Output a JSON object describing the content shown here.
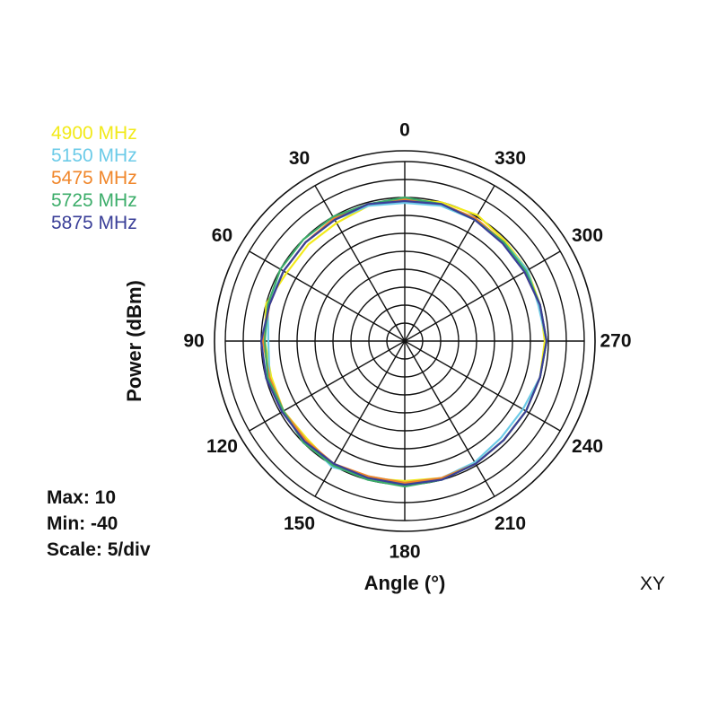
{
  "chart_data": {
    "type": "polar",
    "xlabel": "Angle  (°)",
    "ylabel": "Power  (dBm)",
    "plane_label": "XY",
    "stats": {
      "max_label": "Max: 10",
      "min_label": "Min: -40",
      "scale_label": "Scale: 5/div"
    },
    "rlim": [
      -40,
      10
    ],
    "r_step": 5,
    "angle_ticks": [
      0,
      30,
      60,
      90,
      120,
      150,
      180,
      210,
      240,
      270,
      300,
      330
    ],
    "angle_direction": "counterclockwise, 0 at top",
    "grid": true,
    "legend_position": "top-left",
    "angles": [
      0,
      15,
      30,
      45,
      60,
      75,
      90,
      105,
      120,
      135,
      150,
      165,
      180,
      195,
      210,
      225,
      240,
      255,
      270,
      285,
      300,
      315,
      330,
      345
    ],
    "series": [
      {
        "name": "4900 MHz",
        "color": "#f2ea1a",
        "values": [
          -0.5,
          -1,
          -2,
          -2,
          -2,
          0,
          -1,
          -1.5,
          -1,
          -1.5,
          0,
          -0.5,
          -1,
          -0.5,
          -0.5,
          -1,
          -1,
          -1,
          -1,
          -1,
          -0.5,
          -0.5,
          0.5,
          0
        ]
      },
      {
        "name": "5150 MHz",
        "color": "#6ccbe8",
        "values": [
          -1.5,
          -1,
          -1,
          -1,
          -1,
          -0.5,
          -2,
          -1,
          -1,
          -1,
          0.5,
          -1,
          -0.5,
          -0.5,
          -1,
          -2,
          -2,
          -1,
          -0.5,
          -1.5,
          -0.5,
          -1,
          -1,
          -1
        ]
      },
      {
        "name": "5475 MHz",
        "color": "#f0862a",
        "values": [
          -0.5,
          -0.5,
          -0.5,
          -1,
          -1,
          -1,
          -0.5,
          -1,
          -1,
          -1,
          -0.5,
          -1,
          -0.5,
          -0.5,
          -0.5,
          -1,
          -1,
          -1,
          -0.5,
          -1,
          -1.5,
          -1,
          -0.5,
          -0.5
        ]
      },
      {
        "name": "5725 MHz",
        "color": "#3cad6a",
        "values": [
          0,
          -0.5,
          0,
          0,
          0,
          -0.5,
          -1,
          -0.5,
          -1,
          0,
          0,
          0,
          0.5,
          0,
          -0.5,
          -1,
          -1,
          -1,
          -0.5,
          -1,
          -1,
          -1,
          -1,
          -0.5
        ]
      },
      {
        "name": "5875 MHz",
        "color": "#3a3f98",
        "values": [
          -1,
          -0.5,
          -1,
          -1,
          -1,
          -1,
          0,
          0,
          -0.5,
          -0.5,
          -0.5,
          -0.5,
          0,
          0,
          -0.5,
          -1,
          -1,
          -1,
          -0.5,
          -1,
          -1.5,
          -1.5,
          -1,
          -0.5
        ]
      }
    ]
  }
}
